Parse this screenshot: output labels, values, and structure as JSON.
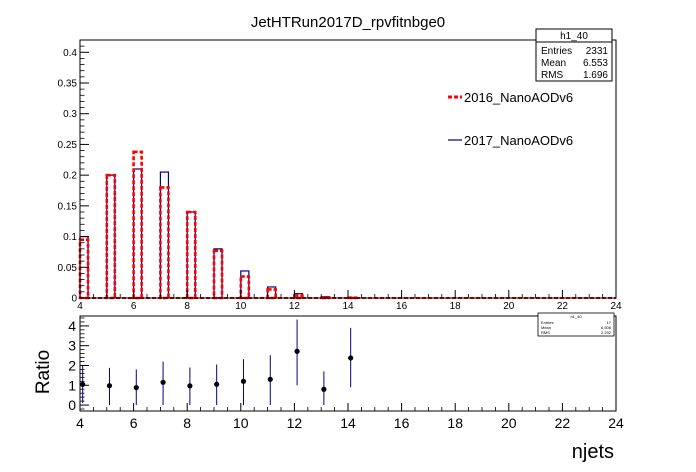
{
  "title": "JetHTRun2017D_rpvfitnbge0",
  "colors": {
    "series_2016": "#ff0000",
    "series_2017": "#00008b",
    "ratio_points": "#000000",
    "ratio_errors": "#00008b"
  },
  "stats_box": {
    "name": "h1_40",
    "entries_label": "Entries",
    "entries_value": "2331",
    "mean_label": "Mean",
    "mean_value": "6.553",
    "rms_label": "RMS",
    "rms_value": "1.696"
  },
  "ratio_stats_box": {
    "name": "h1_40",
    "entries_label": "Entries",
    "entries_value": "17",
    "mean_label": "Mean",
    "mean_value": "6.506",
    "rms_label": "RMS",
    "rms_value": "2.292"
  },
  "chart_data": [
    {
      "type": "histogram",
      "panel": "top",
      "xlim": [
        4,
        24
      ],
      "ylim": [
        0,
        0.42
      ],
      "xticks": [
        "4",
        "6",
        "8",
        "10",
        "12",
        "14",
        "16",
        "18",
        "20",
        "22",
        "24"
      ],
      "yticks": [
        "0",
        "0.05",
        "0.1",
        "0.15",
        "0.2",
        "0.25",
        "0.3",
        "0.35",
        "0.4"
      ],
      "legend_position": "right",
      "bin_width": 1,
      "x": [
        4,
        5,
        6,
        7,
        8,
        9,
        10,
        11,
        12,
        13,
        14,
        15,
        16,
        17,
        18,
        19,
        20,
        21,
        22,
        23
      ],
      "series": [
        {
          "name": "2016_NanoAODv6",
          "style": "dashed",
          "values": [
            0.095,
            0.2,
            0.238,
            0.18,
            0.14,
            0.077,
            0.035,
            0.014,
            0.004,
            0.001,
            0.0005,
            0,
            0,
            0,
            0,
            0,
            0,
            0,
            0,
            0
          ]
        },
        {
          "name": "2017_NanoAODv6",
          "style": "solid",
          "values": [
            0.1,
            0.2,
            0.21,
            0.205,
            0.14,
            0.08,
            0.044,
            0.018,
            0.007,
            0.002,
            0.001,
            0,
            0,
            0,
            0,
            0,
            0,
            0,
            0,
            0
          ]
        }
      ]
    },
    {
      "type": "scatter",
      "panel": "ratio",
      "xlim": [
        4,
        24
      ],
      "ylim": [
        -0.3,
        4.5
      ],
      "xticks": [
        "4",
        "6",
        "8",
        "10",
        "12",
        "14",
        "16",
        "18",
        "20",
        "22",
        "24"
      ],
      "yticks": [
        "0",
        "1",
        "2",
        "3",
        "4"
      ],
      "xlabel": "njets",
      "ylabel": "Ratio",
      "x": [
        4.1,
        5.1,
        6.1,
        7.1,
        8.1,
        9.1,
        10.1,
        11.1,
        12.1,
        13.1,
        14.1
      ],
      "values": [
        1.05,
        0.98,
        0.88,
        1.15,
        0.97,
        1.05,
        1.2,
        1.3,
        2.72,
        0.8,
        2.38
      ],
      "err_low": [
        0.95,
        0.98,
        0.88,
        1.15,
        0.97,
        1.05,
        1.2,
        1.3,
        1.72,
        0.8,
        1.48
      ],
      "err_high": [
        0.95,
        0.9,
        0.92,
        1.05,
        0.93,
        1.0,
        1.12,
        1.22,
        1.6,
        0.9,
        1.52
      ]
    }
  ]
}
